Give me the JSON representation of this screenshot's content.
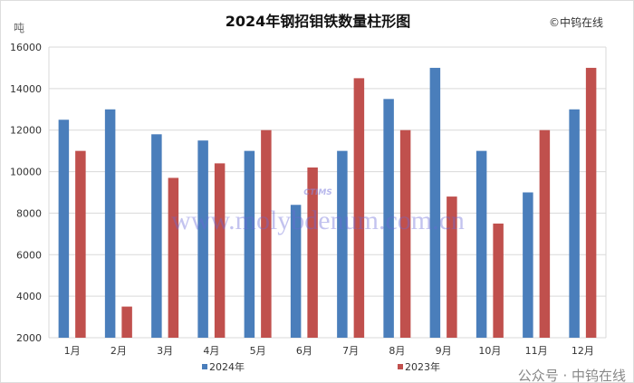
{
  "chart_data": {
    "type": "bar",
    "title": "2024年钢招钼铁数量柱形图",
    "copyright": "©中钨在线",
    "ylabel": "吨",
    "xlabel": "",
    "ylim": [
      2000,
      16000
    ],
    "yticks": [
      2000,
      4000,
      6000,
      8000,
      10000,
      12000,
      14000,
      16000
    ],
    "grid": true,
    "legend_position": "bottom",
    "categories": [
      "1月",
      "2月",
      "3月",
      "4月",
      "5月",
      "6月",
      "7月",
      "8月",
      "9月",
      "10月",
      "11月",
      "12月"
    ],
    "series": [
      {
        "name": "2024年",
        "color": "#4a7ebb",
        "values": [
          12500,
          13000,
          11800,
          11500,
          11000,
          8400,
          11000,
          13500,
          15000,
          11000,
          9000,
          13000
        ]
      },
      {
        "name": "2023年",
        "color": "#c0504d",
        "values": [
          11000,
          3500,
          9700,
          10400,
          12000,
          10200,
          14500,
          12000,
          8800,
          7500,
          12000,
          15000
        ]
      }
    ],
    "watermark": "www.molybdenum.com.cn",
    "watermark_logo": "CTIMS",
    "footer_note": "公众号 · 中钨在线"
  }
}
